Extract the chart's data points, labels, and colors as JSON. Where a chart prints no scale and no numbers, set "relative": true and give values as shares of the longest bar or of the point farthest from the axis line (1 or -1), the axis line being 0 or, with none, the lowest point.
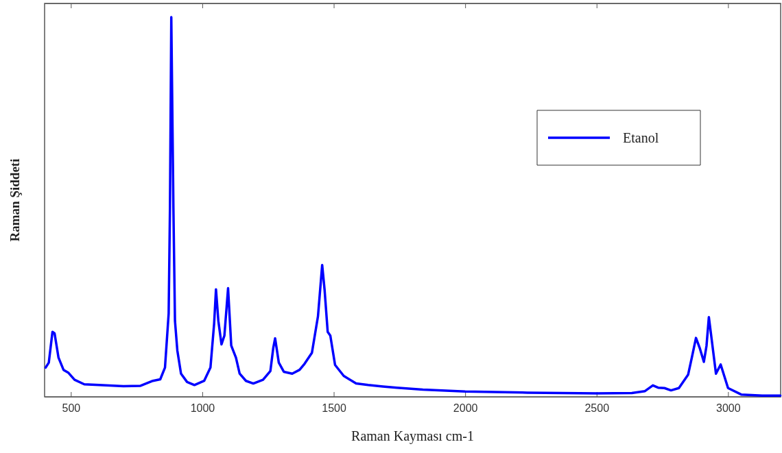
{
  "chart_data": {
    "type": "line",
    "xlabel": "Raman Kayması cm-1",
    "ylabel": "Raman Şiddeti",
    "relative": true,
    "xlim": [
      400,
      3200
    ],
    "xticks": [
      500,
      1000,
      1500,
      2000,
      2500,
      3000
    ],
    "legend": "top right",
    "grid": false,
    "x": [
      404,
      416,
      430,
      438,
      453,
      472,
      491,
      514,
      551,
      607,
      700,
      765,
      812,
      840,
      858,
      872,
      877,
      882,
      890,
      896,
      905,
      919,
      942,
      970,
      1007,
      1031,
      1045,
      1052,
      1061,
      1073,
      1084,
      1098,
      1110,
      1128,
      1142,
      1166,
      1194,
      1231,
      1259,
      1270,
      1277,
      1291,
      1310,
      1342,
      1370,
      1389,
      1417,
      1440,
      1456,
      1465,
      1477,
      1487,
      1505,
      1538,
      1585,
      1631,
      1687,
      1740,
      1839,
      2000,
      2237,
      2500,
      2634,
      2684,
      2714,
      2734,
      2758,
      2783,
      2813,
      2848,
      2863,
      2878,
      2893,
      2908,
      2918,
      2927,
      2937,
      2954,
      2972,
      3000,
      3050,
      3130,
      3199
    ],
    "series": [
      {
        "name": "Etanol",
        "color": "#0000ff",
        "values": [
          0.077,
          0.09,
          0.171,
          0.167,
          0.103,
          0.071,
          0.063,
          0.045,
          0.033,
          0.031,
          0.028,
          0.029,
          0.042,
          0.046,
          0.077,
          0.219,
          0.5,
          1.0,
          0.5,
          0.2,
          0.122,
          0.061,
          0.039,
          0.031,
          0.042,
          0.077,
          0.193,
          0.283,
          0.2,
          0.138,
          0.161,
          0.286,
          0.135,
          0.103,
          0.061,
          0.042,
          0.035,
          0.045,
          0.068,
          0.129,
          0.154,
          0.09,
          0.066,
          0.061,
          0.071,
          0.087,
          0.116,
          0.212,
          0.347,
          0.283,
          0.171,
          0.161,
          0.084,
          0.055,
          0.035,
          0.031,
          0.027,
          0.024,
          0.019,
          0.014,
          0.011,
          0.009,
          0.01,
          0.015,
          0.03,
          0.024,
          0.023,
          0.017,
          0.023,
          0.058,
          0.106,
          0.155,
          0.127,
          0.092,
          0.134,
          0.21,
          0.155,
          0.061,
          0.085,
          0.023,
          0.006,
          0.003,
          0.003
        ]
      }
    ]
  }
}
